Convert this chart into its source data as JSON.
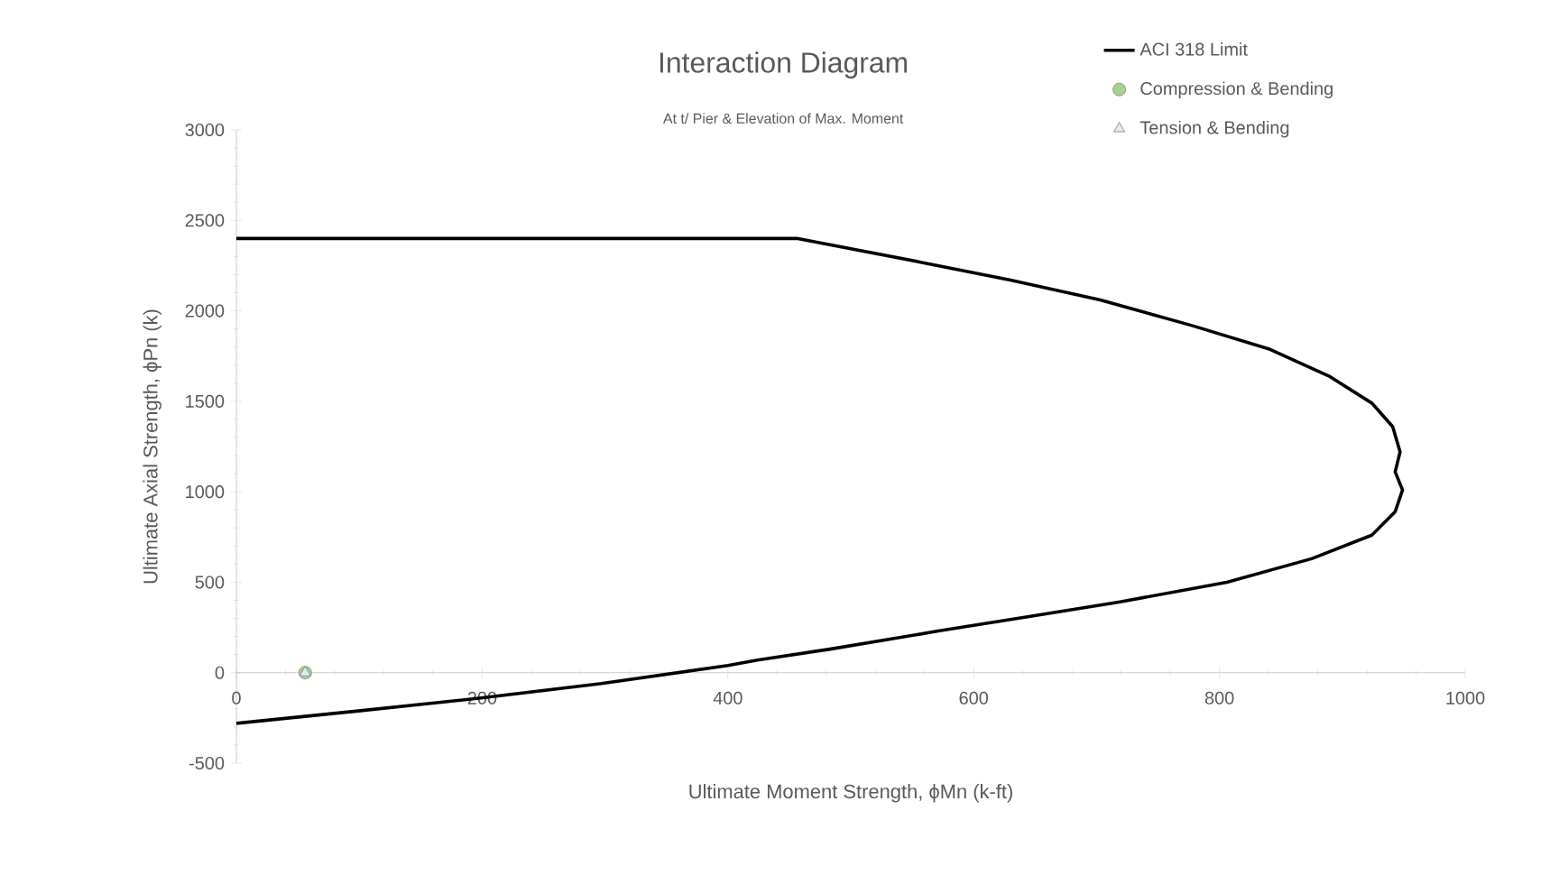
{
  "chart_data": {
    "type": "line",
    "title": "Interaction Diagram",
    "subtitle": "At t/ Pier & Elevation of Max. Moment",
    "xlabel": "Ultimate Moment Strength, ϕMn (k-ft)",
    "ylabel": "Ultimate Axial Strength, ϕPn (k)",
    "xlim": [
      0,
      1000
    ],
    "ylim": [
      -500,
      3000
    ],
    "xticks": [
      0,
      200,
      400,
      600,
      800,
      1000
    ],
    "yticks": [
      -500,
      0,
      500,
      1000,
      1500,
      2000,
      2500,
      3000
    ],
    "grid": false,
    "legend": "top right",
    "series": [
      {
        "name": "ACI 318 Limit",
        "color": "#000000",
        "marker": "none",
        "x": [
          0,
          456,
          556,
          630,
          703,
          777,
          840,
          889,
          924,
          941,
          947,
          943,
          949,
          943,
          924,
          875,
          806,
          718,
          645,
          571,
          483,
          424,
          400,
          297,
          199,
          101,
          0
        ],
        "values": [
          2400,
          2400,
          2270,
          2170,
          2060,
          1920,
          1790,
          1640,
          1490,
          1360,
          1220,
          1110,
          1010,
          890,
          760,
          630,
          500,
          390,
          310,
          230,
          130,
          70,
          40,
          -60,
          -140,
          -210,
          -280
        ]
      },
      {
        "name": "Compression & Bending",
        "type": "scatter",
        "color": "#a9d08e",
        "marker": "circle",
        "x": [
          56
        ],
        "values": [
          0
        ]
      },
      {
        "name": "Tension & Bending",
        "type": "scatter",
        "color": "#ddebf7",
        "marker": "triangle",
        "x": [
          56
        ],
        "values": [
          0
        ]
      }
    ]
  }
}
